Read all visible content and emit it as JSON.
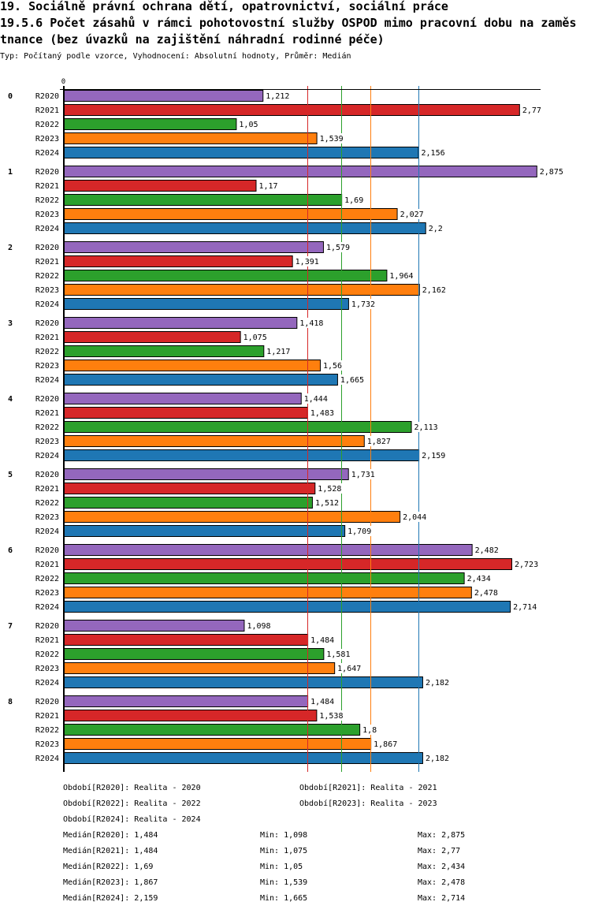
{
  "header": {
    "title_line1": "19. Sociálně právní ochrana dětí, opatrovnictví, sociální práce",
    "title_line2": "19.5.6 Počet zásahů v rámci pohotovostní služby OSPOD mimo pracovní dobu na zaměstnance (bez úvazků na zajištění náhradní rodinné péče)",
    "subtitle": "Typ: Počítaný podle vzorce, Vyhodnocení: Absolutní hodnoty, Průměr: Medián"
  },
  "chart_data": {
    "type": "bar",
    "orientation": "horizontal",
    "title": "19.5.6 Počet zásahů v rámci pohotovostní služby OSPOD mimo pracovní dobu na zaměstnance (bez úvazků na zajištění náhradní rodinné péče)",
    "xlabel": "",
    "ylabel": "",
    "xlim": [
      0,
      2.9
    ],
    "x_ticks": [
      "0"
    ],
    "grid": false,
    "decimal_separator": ",",
    "categories": [
      "0",
      "1",
      "2",
      "3",
      "4",
      "5",
      "6",
      "7",
      "8"
    ],
    "series": [
      {
        "name": "R2020",
        "color": "#9467bd",
        "median": 1.484,
        "values": [
          1.212,
          2.875,
          1.579,
          1.418,
          1.444,
          1.731,
          2.482,
          1.098,
          1.484
        ]
      },
      {
        "name": "R2021",
        "color": "#d62728",
        "median": 1.484,
        "values": [
          2.77,
          1.17,
          1.391,
          1.075,
          1.483,
          1.528,
          2.723,
          1.484,
          1.538
        ]
      },
      {
        "name": "R2022",
        "color": "#2ca02c",
        "median": 1.69,
        "values": [
          1.05,
          1.69,
          1.964,
          1.217,
          2.113,
          1.512,
          2.434,
          1.581,
          1.8
        ]
      },
      {
        "name": "R2023",
        "color": "#ff7f0e",
        "median": 1.867,
        "values": [
          1.539,
          2.027,
          2.162,
          1.56,
          1.827,
          2.044,
          2.478,
          1.647,
          1.867
        ]
      },
      {
        "name": "R2024",
        "color": "#1f77b4",
        "median": 2.159,
        "values": [
          2.156,
          2.2,
          1.732,
          1.665,
          2.159,
          1.709,
          2.714,
          2.182,
          2.182
        ]
      }
    ]
  },
  "legend": {
    "periods": [
      "Období[R2020]: Realita - 2020",
      "Období[R2021]: Realita - 2021",
      "Období[R2022]: Realita - 2022",
      "Období[R2023]: Realita - 2023",
      "Období[R2024]: Realita - 2024"
    ],
    "stats": [
      {
        "median": "Medián[R2020]: 1,484",
        "min": "Min: 1,098",
        "max": "Max: 2,875"
      },
      {
        "median": "Medián[R2021]: 1,484",
        "min": "Min: 1,075",
        "max": "Max: 2,77"
      },
      {
        "median": "Medián[R2022]: 1,69",
        "min": "Min: 1,05",
        "max": "Max: 2,434"
      },
      {
        "median": "Medián[R2023]: 1,867",
        "min": "Min: 1,539",
        "max": "Max: 2,478"
      },
      {
        "median": "Medián[R2024]: 2,159",
        "min": "Min: 1,665",
        "max": "Max: 2,714"
      }
    ]
  }
}
